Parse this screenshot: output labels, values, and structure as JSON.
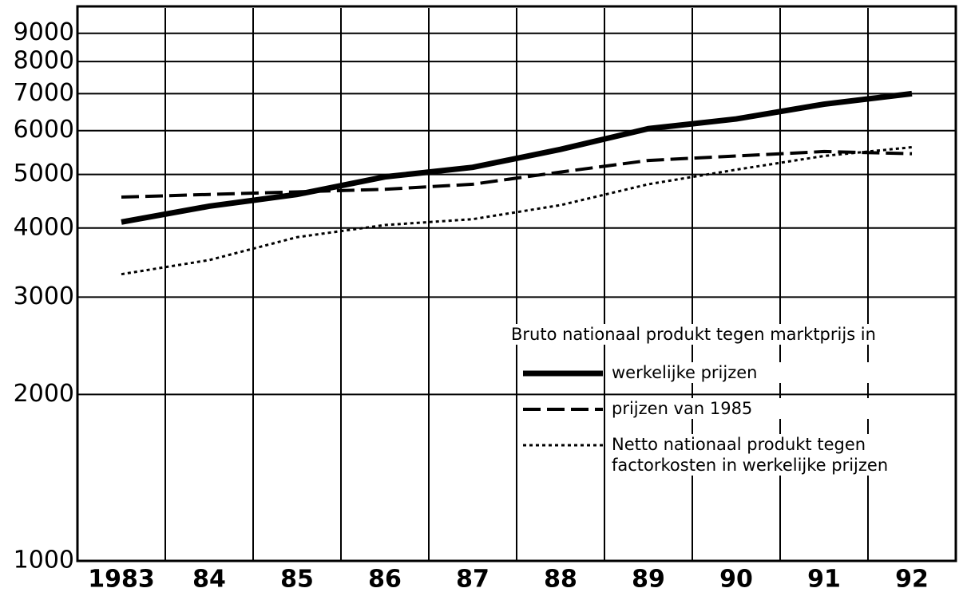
{
  "chart_data": {
    "type": "line",
    "x": [
      1983,
      1984,
      1985,
      1986,
      1987,
      1988,
      1989,
      1990,
      1991,
      1992
    ],
    "xlim": [
      1982.5,
      1992.5
    ],
    "xticks": [
      {
        "value": 1983,
        "label": "1983"
      },
      {
        "value": 1984,
        "label": "84"
      },
      {
        "value": 1985,
        "label": "85"
      },
      {
        "value": 1986,
        "label": "86"
      },
      {
        "value": 1987,
        "label": "87"
      },
      {
        "value": 1988,
        "label": "88"
      },
      {
        "value": 1989,
        "label": "89"
      },
      {
        "value": 1990,
        "label": "90"
      },
      {
        "value": 1991,
        "label": "91"
      },
      {
        "value": 1992,
        "label": "92"
      }
    ],
    "ylim": [
      1000,
      10000
    ],
    "yticks": [
      1000,
      2000,
      3000,
      4000,
      5000,
      6000,
      7000,
      8000,
      9000
    ],
    "log_scale": true,
    "grid": true,
    "legend_title": "Bruto nationaal produkt tegen marktprijs in",
    "legend_position": "lower right",
    "series": [
      {
        "name": "werkelijke prijzen",
        "color": "#000000",
        "style": "solid",
        "values": [
          4100,
          4380,
          4600,
          4950,
          5150,
          5550,
          6050,
          6300,
          6700,
          7000
        ]
      },
      {
        "name": "prijzen van 1985",
        "color": "#000000",
        "style": "dashed",
        "values": [
          4550,
          4600,
          4650,
          4700,
          4800,
          5050,
          5300,
          5400,
          5500,
          5450
        ]
      },
      {
        "name": "Netto nationaal produkt tegen factorkosten in werkelijke prijzen",
        "color": "#000000",
        "style": "dotted",
        "values": [
          3300,
          3500,
          3850,
          4050,
          4150,
          4400,
          4800,
          5100,
          5400,
          5600
        ]
      }
    ]
  }
}
